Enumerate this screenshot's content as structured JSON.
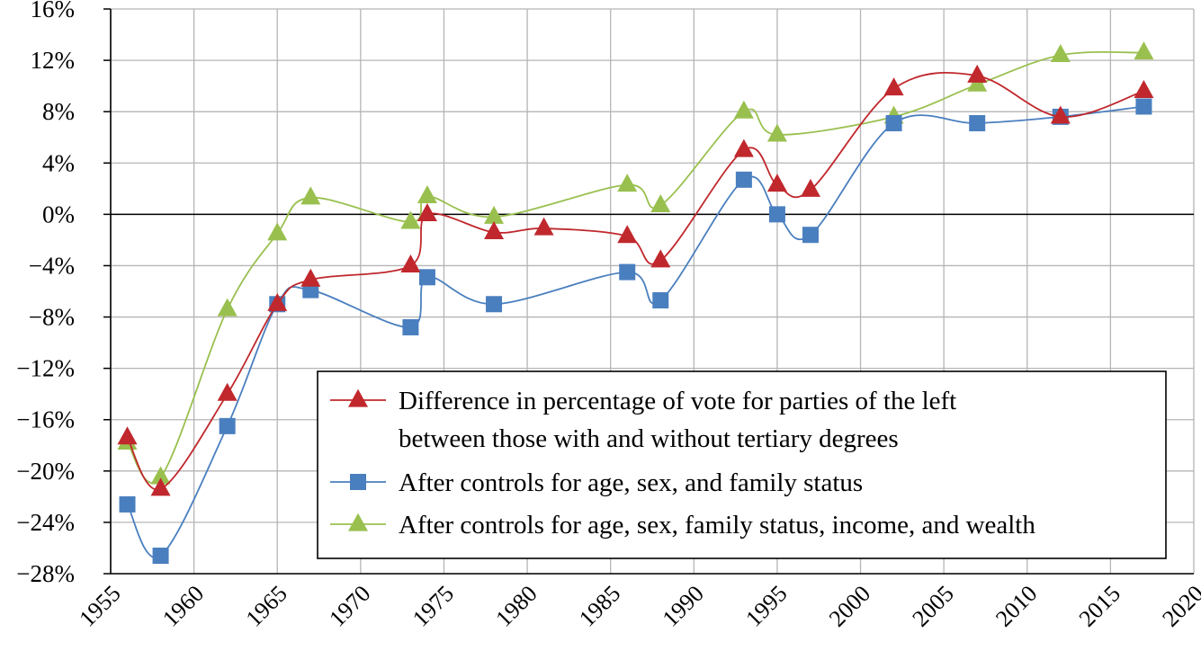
{
  "chart_data": {
    "type": "line",
    "title": "",
    "xlabel": "",
    "ylabel": "",
    "xlim": [
      1955,
      2020
    ],
    "ylim": [
      -28,
      16
    ],
    "x_ticks": [
      "1955",
      "1960",
      "1965",
      "1970",
      "1975",
      "1980",
      "1985",
      "1990",
      "1995",
      "2000",
      "2005",
      "2010",
      "2015",
      "2020"
    ],
    "y_ticks": [
      "16%",
      "12%",
      "8%",
      "4%",
      "0%",
      "−4%",
      "−8%",
      "−12%",
      "−16%",
      "−20%",
      "−24%",
      "−28%"
    ],
    "grid": true,
    "legend_position": "bottom-right",
    "series": [
      {
        "name": "Difference in percentage of vote for parties of the left between those with and without tertiary degrees",
        "legend_lines": [
          "Difference in percentage of vote for parties of the left",
          "between those with and without tertiary degrees"
        ],
        "color": "#c0282d",
        "marker": "triangle",
        "points": [
          [
            1956,
            -17.4
          ],
          [
            1958,
            -21.4
          ],
          [
            1962,
            -14.0
          ],
          [
            1965,
            -7.0
          ],
          [
            1967,
            -5.1
          ],
          [
            1973,
            -4.0
          ],
          [
            1974,
            0.0
          ],
          [
            1978,
            -1.4
          ],
          [
            1981,
            -1.1
          ],
          [
            1986,
            -1.7
          ],
          [
            1988,
            -3.6
          ],
          [
            1993,
            5.0
          ],
          [
            1995,
            2.3
          ],
          [
            1997,
            1.9
          ],
          [
            2002,
            9.8
          ],
          [
            2007,
            10.8
          ],
          [
            2012,
            7.6
          ],
          [
            2017,
            9.6
          ]
        ]
      },
      {
        "name": "After controls for age, sex, and family status",
        "legend_lines": [
          "After controls for age, sex, and family status"
        ],
        "color": "#4a7fbf",
        "marker": "square",
        "points": [
          [
            1956,
            -22.6
          ],
          [
            1958,
            -26.6
          ],
          [
            1962,
            -16.5
          ],
          [
            1965,
            -7.0
          ],
          [
            1967,
            -5.9
          ],
          [
            1973,
            -8.8
          ],
          [
            1974,
            -4.9
          ],
          [
            1978,
            -7.0
          ],
          [
            1986,
            -4.5
          ],
          [
            1988,
            -6.7
          ],
          [
            1993,
            2.7
          ],
          [
            1995,
            0.0
          ],
          [
            1997,
            -1.6
          ],
          [
            2002,
            7.1
          ],
          [
            2007,
            7.1
          ],
          [
            2012,
            7.6
          ],
          [
            2017,
            8.4
          ]
        ]
      },
      {
        "name": "After controls for age, sex, family status, income, and wealth",
        "legend_lines": [
          "After controls for age, sex, family status, income, and wealth"
        ],
        "color": "#99c04f",
        "marker": "triangle",
        "points": [
          [
            1956,
            -17.8
          ],
          [
            1958,
            -20.5
          ],
          [
            1962,
            -7.4
          ],
          [
            1965,
            -1.5
          ],
          [
            1967,
            1.3
          ],
          [
            1973,
            -0.6
          ],
          [
            1974,
            1.4
          ],
          [
            1978,
            -0.2
          ],
          [
            1986,
            2.3
          ],
          [
            1988,
            0.7
          ],
          [
            1993,
            8.0
          ],
          [
            1995,
            6.2
          ],
          [
            2002,
            7.6
          ],
          [
            2007,
            10.1
          ],
          [
            2012,
            12.4
          ],
          [
            2017,
            12.6
          ]
        ]
      }
    ]
  }
}
